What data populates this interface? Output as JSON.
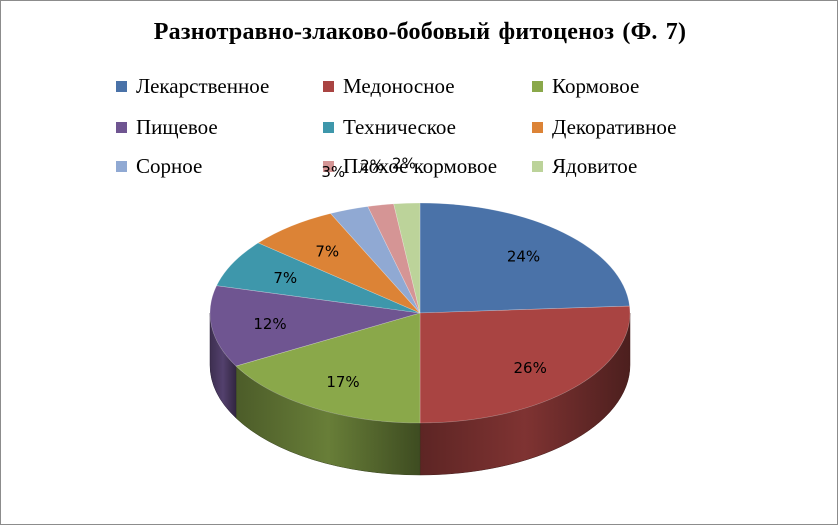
{
  "chart_data": {
    "type": "pie",
    "title": "Разнотравно-злаково-бобовый  фитоценоз (Ф. 7)",
    "legend_position": "top",
    "categories": [
      "Лекарственное",
      "Медоносное",
      "Кормовое",
      "Пищевое",
      "Техническое",
      "Декоративное",
      "Сорное",
      "Плохое кормовое",
      "Ядовитое"
    ],
    "values": [
      24,
      26,
      17,
      12,
      7,
      7,
      3,
      2,
      2
    ],
    "labels": [
      "24%",
      "26%",
      "17%",
      "12%",
      "7%",
      "7%",
      "3%",
      "2%",
      "2%"
    ],
    "colors": [
      "#4a72a8",
      "#a94442",
      "#8aa84a",
      "#6f5591",
      "#3e97ab",
      "#dc8336",
      "#90a9d3",
      "#d59595",
      "#bcd39a"
    ]
  }
}
